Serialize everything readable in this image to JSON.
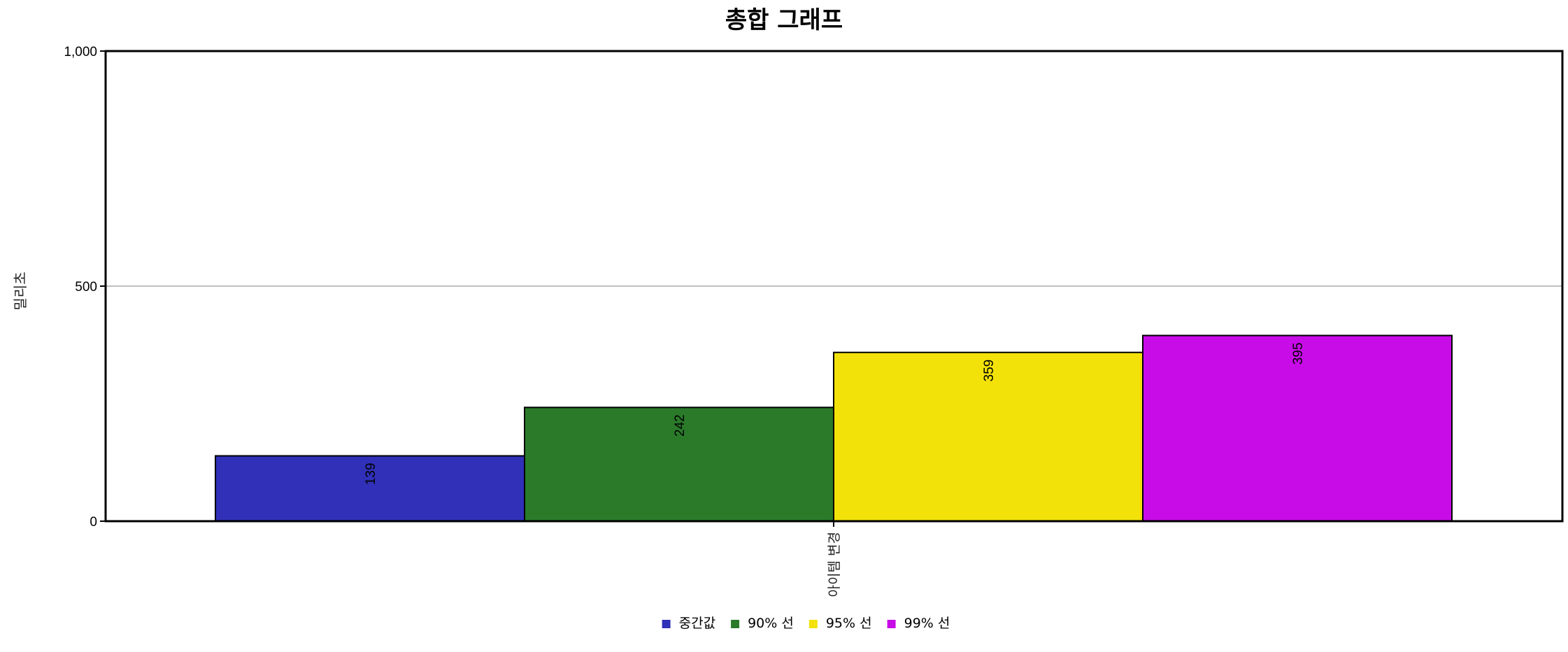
{
  "chart_data": {
    "type": "bar",
    "title": "총합 그래프",
    "xlabel": "",
    "ylabel": "밀리초",
    "categories": [
      "아이템 변경"
    ],
    "series": [
      {
        "name": "중간값",
        "values": [
          139
        ],
        "color": "#3030b8"
      },
      {
        "name": "90% 선",
        "values": [
          242
        ],
        "color": "#2a7a2a"
      },
      {
        "name": "95% 선",
        "values": [
          359
        ],
        "color": "#f2e20a"
      },
      {
        "name": "99% 선",
        "values": [
          395
        ],
        "color": "#c80ce8"
      }
    ],
    "ylim": [
      0,
      1000
    ],
    "yticks": [
      "0",
      "500",
      "1,000"
    ],
    "grid": true,
    "legend": "bottom-center"
  }
}
